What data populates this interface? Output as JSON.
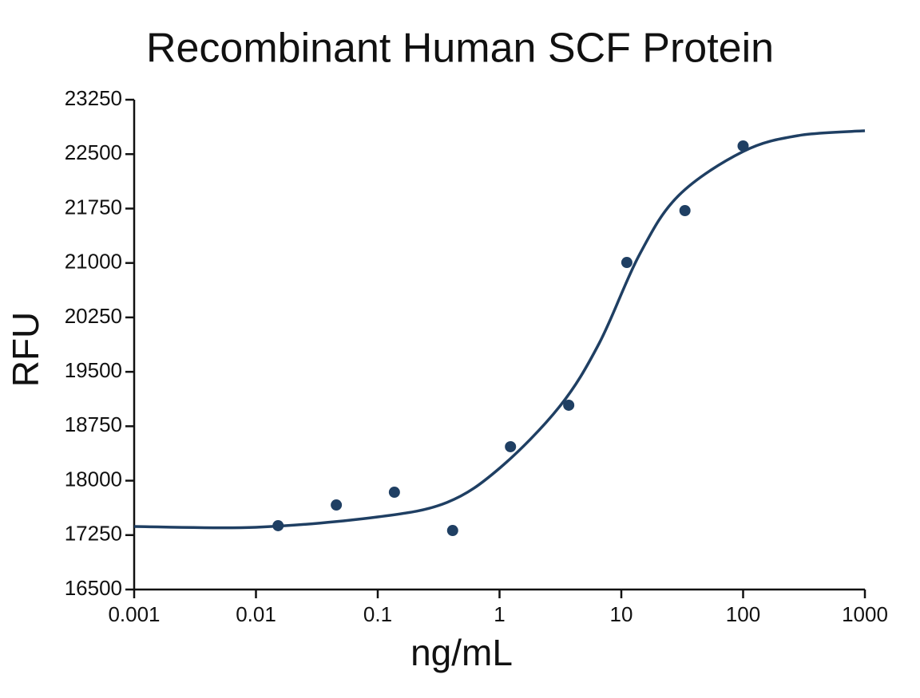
{
  "chart_data": {
    "type": "scatter",
    "title": "Recombinant Human SCF Protein",
    "xlabel": "ng/mL",
    "ylabel": "RFU",
    "xscale": "log",
    "xlim": [
      0.001,
      1000
    ],
    "xticks": [
      0.001,
      0.01,
      0.1,
      1,
      10,
      100,
      1000
    ],
    "ylim": [
      16500,
      23250
    ],
    "yticks": [
      16500,
      17250,
      18000,
      18750,
      19500,
      20250,
      21000,
      21750,
      22500,
      23250
    ],
    "series": [
      {
        "type": "scatter",
        "color": "#1f3f63",
        "x": [
          0.0152,
          0.0457,
          0.137,
          0.412,
          1.23,
          3.7,
          11.1,
          33.3,
          100
        ],
        "values": [
          17380,
          17665,
          17841,
          17313,
          18468,
          19040,
          21007,
          21722,
          22613
        ]
      },
      {
        "type": "line",
        "color": "#1f3f63",
        "x": [
          0.001,
          0.01,
          0.1,
          0.37,
          1,
          3.1,
          6.6,
          14,
          29.6,
          100,
          285,
          1000
        ],
        "values": [
          17369,
          17358,
          17500,
          17700,
          18171,
          19018,
          19897,
          21106,
          21931,
          22536,
          22756,
          22822
        ]
      }
    ]
  }
}
